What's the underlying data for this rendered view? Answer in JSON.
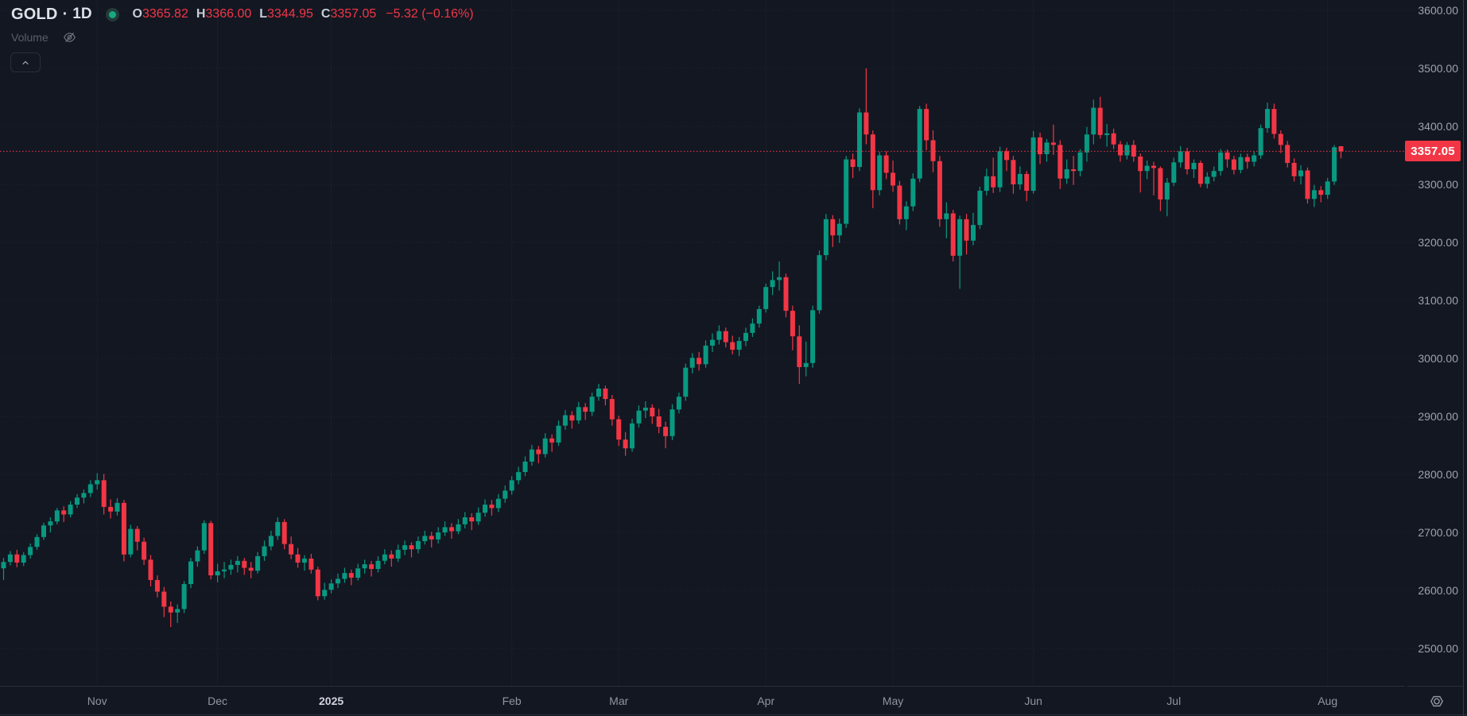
{
  "legend": {
    "symbol": "GOLD",
    "separator": "·",
    "timeframe": "1D",
    "ohlc_items": [
      {
        "label": "O",
        "value": "3365.82"
      },
      {
        "label": "H",
        "value": "3366.00"
      },
      {
        "label": "L",
        "value": "3344.95"
      },
      {
        "label": "C",
        "value": "3357.05"
      }
    ],
    "change": "−5.32 (−0.16%)",
    "indicator_name": "Volume"
  },
  "price_scale": {
    "current_price_label": "3357.05"
  },
  "colors": {
    "background": "#131722",
    "up": "#089981",
    "down": "#F23645",
    "text_primary": "#DDE1E8",
    "text_secondary": "#9CA1AB",
    "text_dim": "#5A5E69",
    "border": "#2A2E39",
    "grid": "rgba(240,243,250,0.07)"
  },
  "chart_data": {
    "type": "candlestick",
    "title": "GOLD · 1D",
    "symbol": "GOLD",
    "timeframe": "1D",
    "legend_position": "top-left",
    "grid": "dotted-horizontal",
    "price_axis": {
      "min": 2500,
      "max": 3600,
      "tick_step": 100,
      "side": "right"
    },
    "current_price": 3357.05,
    "change": "−5.32 (−0.16%)",
    "up_color": "#089981",
    "down_color": "#F23645",
    "months": [
      {
        "label": "Nov",
        "candle_index": 14,
        "emphasis": false
      },
      {
        "label": "Dec",
        "candle_index": 32,
        "emphasis": false
      },
      {
        "label": "2025",
        "candle_index": 49,
        "emphasis": true
      },
      {
        "label": "Feb",
        "candle_index": 76,
        "emphasis": false
      },
      {
        "label": "Mar",
        "candle_index": 92,
        "emphasis": false
      },
      {
        "label": "Apr",
        "candle_index": 114,
        "emphasis": false
      },
      {
        "label": "May",
        "candle_index": 133,
        "emphasis": false
      },
      {
        "label": "Jun",
        "candle_index": 154,
        "emphasis": false
      },
      {
        "label": "Jul",
        "candle_index": 175,
        "emphasis": false
      },
      {
        "label": "Aug",
        "candle_index": 198,
        "emphasis": false
      }
    ],
    "candles": [
      [
        2638,
        2656,
        2618,
        2649
      ],
      [
        2649,
        2668,
        2643,
        2662
      ],
      [
        2662,
        2670,
        2640,
        2648
      ],
      [
        2648,
        2666,
        2642,
        2661
      ],
      [
        2661,
        2681,
        2655,
        2675
      ],
      [
        2675,
        2697,
        2670,
        2692
      ],
      [
        2692,
        2717,
        2687,
        2712
      ],
      [
        2712,
        2726,
        2700,
        2719
      ],
      [
        2719,
        2742,
        2714,
        2738
      ],
      [
        2738,
        2745,
        2718,
        2731
      ],
      [
        2731,
        2754,
        2726,
        2748
      ],
      [
        2748,
        2766,
        2742,
        2760
      ],
      [
        2760,
        2774,
        2750,
        2768
      ],
      [
        2768,
        2790,
        2761,
        2783
      ],
      [
        2783,
        2802,
        2774,
        2790
      ],
      [
        2790,
        2801,
        2731,
        2744
      ],
      [
        2744,
        2757,
        2724,
        2736
      ],
      [
        2736,
        2759,
        2729,
        2751
      ],
      [
        2751,
        2756,
        2650,
        2662
      ],
      [
        2662,
        2713,
        2657,
        2706
      ],
      [
        2706,
        2711,
        2669,
        2684
      ],
      [
        2684,
        2691,
        2644,
        2653
      ],
      [
        2653,
        2661,
        2607,
        2618
      ],
      [
        2618,
        2626,
        2588,
        2598
      ],
      [
        2598,
        2606,
        2554,
        2572
      ],
      [
        2572,
        2581,
        2537,
        2562
      ],
      [
        2562,
        2576,
        2544,
        2568
      ],
      [
        2568,
        2616,
        2561,
        2611
      ],
      [
        2611,
        2656,
        2604,
        2650
      ],
      [
        2650,
        2676,
        2641,
        2669
      ],
      [
        2669,
        2721,
        2663,
        2716
      ],
      [
        2716,
        2720,
        2619,
        2626
      ],
      [
        2626,
        2646,
        2614,
        2633
      ],
      [
        2633,
        2649,
        2621,
        2636
      ],
      [
        2636,
        2653,
        2627,
        2644
      ],
      [
        2644,
        2659,
        2631,
        2651
      ],
      [
        2651,
        2656,
        2627,
        2639
      ],
      [
        2639,
        2649,
        2621,
        2634
      ],
      [
        2634,
        2666,
        2629,
        2659
      ],
      [
        2659,
        2686,
        2651,
        2676
      ],
      [
        2676,
        2703,
        2669,
        2694
      ],
      [
        2694,
        2726,
        2687,
        2718
      ],
      [
        2718,
        2723,
        2671,
        2680
      ],
      [
        2680,
        2693,
        2654,
        2662
      ],
      [
        2662,
        2673,
        2639,
        2648
      ],
      [
        2648,
        2661,
        2634,
        2655
      ],
      [
        2655,
        2663,
        2629,
        2636
      ],
      [
        2636,
        2641,
        2583,
        2590
      ],
      [
        2590,
        2613,
        2584,
        2601
      ],
      [
        2601,
        2619,
        2595,
        2612
      ],
      [
        2612,
        2629,
        2604,
        2620
      ],
      [
        2620,
        2639,
        2613,
        2630
      ],
      [
        2630,
        2636,
        2609,
        2622
      ],
      [
        2622,
        2646,
        2617,
        2638
      ],
      [
        2638,
        2653,
        2629,
        2645
      ],
      [
        2645,
        2651,
        2624,
        2637
      ],
      [
        2637,
        2659,
        2631,
        2651
      ],
      [
        2651,
        2671,
        2645,
        2662
      ],
      [
        2662,
        2669,
        2641,
        2655
      ],
      [
        2655,
        2679,
        2649,
        2670
      ],
      [
        2670,
        2686,
        2661,
        2678
      ],
      [
        2678,
        2683,
        2657,
        2671
      ],
      [
        2671,
        2693,
        2664,
        2685
      ],
      [
        2685,
        2703,
        2679,
        2694
      ],
      [
        2694,
        2701,
        2674,
        2688
      ],
      [
        2688,
        2709,
        2681,
        2700
      ],
      [
        2700,
        2719,
        2694,
        2709
      ],
      [
        2709,
        2716,
        2689,
        2702
      ],
      [
        2702,
        2723,
        2697,
        2714
      ],
      [
        2714,
        2735,
        2707,
        2726
      ],
      [
        2726,
        2733,
        2704,
        2719
      ],
      [
        2719,
        2743,
        2713,
        2734
      ],
      [
        2734,
        2757,
        2727,
        2748
      ],
      [
        2748,
        2756,
        2729,
        2742
      ],
      [
        2742,
        2766,
        2735,
        2758
      ],
      [
        2758,
        2781,
        2751,
        2772
      ],
      [
        2772,
        2797,
        2765,
        2790
      ],
      [
        2790,
        2813,
        2783,
        2804
      ],
      [
        2804,
        2831,
        2797,
        2822
      ],
      [
        2822,
        2851,
        2815,
        2843
      ],
      [
        2843,
        2849,
        2819,
        2835
      ],
      [
        2835,
        2871,
        2829,
        2862
      ],
      [
        2862,
        2869,
        2839,
        2855
      ],
      [
        2855,
        2893,
        2849,
        2884
      ],
      [
        2884,
        2911,
        2877,
        2902
      ],
      [
        2902,
        2909,
        2879,
        2893
      ],
      [
        2893,
        2925,
        2887,
        2916
      ],
      [
        2916,
        2923,
        2894,
        2908
      ],
      [
        2908,
        2941,
        2901,
        2934
      ],
      [
        2934,
        2956,
        2927,
        2948
      ],
      [
        2948,
        2953,
        2919,
        2930
      ],
      [
        2930,
        2937,
        2884,
        2895
      ],
      [
        2895,
        2901,
        2849,
        2860
      ],
      [
        2860,
        2873,
        2832,
        2845
      ],
      [
        2845,
        2896,
        2839,
        2888
      ],
      [
        2888,
        2919,
        2881,
        2910
      ],
      [
        2910,
        2926,
        2897,
        2915
      ],
      [
        2915,
        2921,
        2887,
        2900
      ],
      [
        2900,
        2913,
        2871,
        2882
      ],
      [
        2882,
        2891,
        2845,
        2866
      ],
      [
        2866,
        2921,
        2859,
        2912
      ],
      [
        2912,
        2941,
        2905,
        2934
      ],
      [
        2934,
        2991,
        2927,
        2984
      ],
      [
        2984,
        3009,
        2974,
        3001
      ],
      [
        3001,
        3011,
        2979,
        2990
      ],
      [
        2990,
        3031,
        2984,
        3022
      ],
      [
        3022,
        3043,
        3011,
        3032
      ],
      [
        3032,
        3057,
        3024,
        3047
      ],
      [
        3047,
        3053,
        3019,
        3028
      ],
      [
        3028,
        3039,
        3007,
        3015
      ],
      [
        3015,
        3037,
        3004,
        3030
      ],
      [
        3030,
        3053,
        3021,
        3044
      ],
      [
        3044,
        3069,
        3037,
        3060
      ],
      [
        3060,
        3091,
        3053,
        3085
      ],
      [
        3085,
        3129,
        3079,
        3123
      ],
      [
        3123,
        3150,
        3109,
        3135
      ],
      [
        3135,
        3167,
        3117,
        3140
      ],
      [
        3140,
        3146,
        3071,
        3082
      ],
      [
        3082,
        3091,
        3014,
        3038
      ],
      [
        3038,
        3057,
        2956,
        2985
      ],
      [
        2985,
        3029,
        2969,
        2992
      ],
      [
        2992,
        3091,
        2984,
        3083
      ],
      [
        3083,
        3186,
        3077,
        3178
      ],
      [
        3178,
        3249,
        3169,
        3240
      ],
      [
        3240,
        3247,
        3192,
        3212
      ],
      [
        3212,
        3241,
        3199,
        3232
      ],
      [
        3232,
        3349,
        3225,
        3343
      ],
      [
        3343,
        3353,
        3311,
        3330
      ],
      [
        3330,
        3431,
        3323,
        3424
      ],
      [
        3424,
        3500,
        3369,
        3386
      ],
      [
        3386,
        3393,
        3259,
        3290
      ],
      [
        3290,
        3356,
        3281,
        3350
      ],
      [
        3350,
        3357,
        3309,
        3320
      ],
      [
        3320,
        3341,
        3287,
        3298
      ],
      [
        3298,
        3306,
        3231,
        3240
      ],
      [
        3240,
        3271,
        3221,
        3262
      ],
      [
        3262,
        3319,
        3254,
        3310
      ],
      [
        3310,
        3435,
        3304,
        3430
      ],
      [
        3430,
        3439,
        3359,
        3376
      ],
      [
        3376,
        3393,
        3321,
        3340
      ],
      [
        3340,
        3349,
        3227,
        3240
      ],
      [
        3240,
        3269,
        3207,
        3250
      ],
      [
        3250,
        3256,
        3167,
        3177
      ],
      [
        3177,
        3246,
        3120,
        3240
      ],
      [
        3240,
        3249,
        3179,
        3203
      ],
      [
        3203,
        3251,
        3195,
        3230
      ],
      [
        3230,
        3296,
        3223,
        3289
      ],
      [
        3289,
        3327,
        3281,
        3314
      ],
      [
        3314,
        3346,
        3285,
        3295
      ],
      [
        3295,
        3365,
        3287,
        3357
      ],
      [
        3357,
        3363,
        3323,
        3342
      ],
      [
        3342,
        3349,
        3284,
        3300
      ],
      [
        3300,
        3331,
        3291,
        3318
      ],
      [
        3318,
        3323,
        3271,
        3289
      ],
      [
        3289,
        3392,
        3284,
        3381
      ],
      [
        3381,
        3389,
        3335,
        3352
      ],
      [
        3352,
        3378,
        3339,
        3372
      ],
      [
        3372,
        3403,
        3351,
        3368
      ],
      [
        3368,
        3376,
        3292,
        3310
      ],
      [
        3310,
        3343,
        3301,
        3326
      ],
      [
        3326,
        3349,
        3299,
        3323
      ],
      [
        3323,
        3361,
        3314,
        3355
      ],
      [
        3355,
        3399,
        3339,
        3386
      ],
      [
        3386,
        3446,
        3369,
        3432
      ],
      [
        3432,
        3451,
        3379,
        3385
      ],
      [
        3385,
        3404,
        3365,
        3388
      ],
      [
        3388,
        3396,
        3361,
        3369
      ],
      [
        3369,
        3375,
        3339,
        3350
      ],
      [
        3350,
        3373,
        3343,
        3368
      ],
      [
        3368,
        3376,
        3339,
        3348
      ],
      [
        3348,
        3353,
        3286,
        3323
      ],
      [
        3323,
        3341,
        3309,
        3332
      ],
      [
        3332,
        3339,
        3281,
        3328
      ],
      [
        3328,
        3331,
        3254,
        3274
      ],
      [
        3274,
        3311,
        3245,
        3303
      ],
      [
        3303,
        3346,
        3297,
        3338
      ],
      [
        3338,
        3366,
        3329,
        3357
      ],
      [
        3357,
        3363,
        3317,
        3326
      ],
      [
        3326,
        3343,
        3311,
        3337
      ],
      [
        3337,
        3341,
        3295,
        3301
      ],
      [
        3301,
        3321,
        3293,
        3313
      ],
      [
        3313,
        3331,
        3305,
        3323
      ],
      [
        3323,
        3361,
        3315,
        3355
      ],
      [
        3355,
        3360,
        3329,
        3343
      ],
      [
        3343,
        3349,
        3317,
        3325
      ],
      [
        3325,
        3353,
        3319,
        3347
      ],
      [
        3347,
        3353,
        3327,
        3339
      ],
      [
        3339,
        3357,
        3331,
        3350
      ],
      [
        3350,
        3403,
        3344,
        3397
      ],
      [
        3397,
        3441,
        3389,
        3430
      ],
      [
        3430,
        3439,
        3379,
        3387
      ],
      [
        3387,
        3393,
        3354,
        3368
      ],
      [
        3368,
        3375,
        3329,
        3337
      ],
      [
        3337,
        3345,
        3305,
        3314
      ],
      [
        3314,
        3333,
        3300,
        3324
      ],
      [
        3324,
        3329,
        3267,
        3275
      ],
      [
        3275,
        3299,
        3261,
        3290
      ],
      [
        3290,
        3297,
        3269,
        3282
      ],
      [
        3282,
        3311,
        3275,
        3305
      ],
      [
        3305,
        3368,
        3299,
        3364
      ],
      [
        3365.82,
        3366,
        3344.95,
        3357.05
      ]
    ]
  }
}
